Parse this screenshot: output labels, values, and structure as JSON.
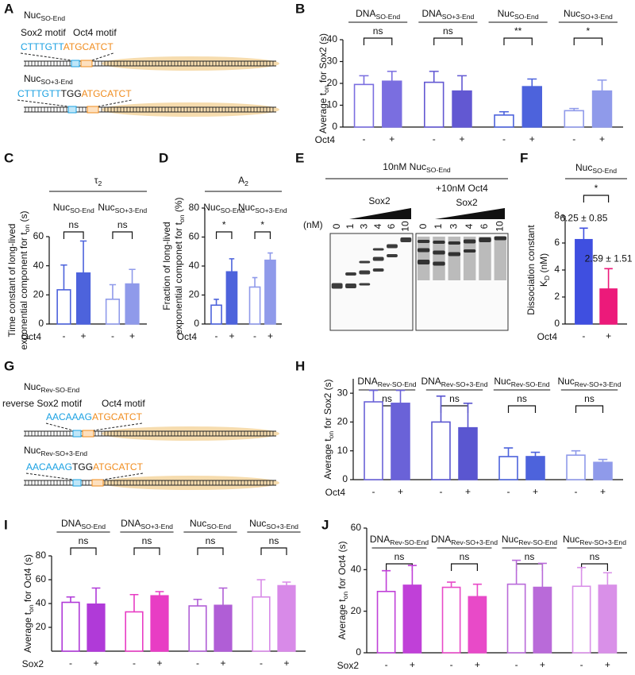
{
  "panel_A": {
    "panel": "A",
    "constructs": [
      {
        "name": {
          "text": "Nuc",
          "sub": "SO-End"
        },
        "motifs": [
          "Sox2 motif",
          "Oct4 motif"
        ],
        "sequence": [
          "CTTTGTT",
          "ATGCATCT"
        ]
      },
      {
        "name": {
          "text": "Nuc",
          "sub": "SO+3-End"
        },
        "sequence": [
          "CTTTGTT",
          "TGG",
          "ATGCATCT"
        ]
      }
    ]
  },
  "panel_G": {
    "panel": "G",
    "constructs": [
      {
        "name": {
          "text": "Nuc",
          "sub": "Rev-SO-End"
        },
        "motifs": [
          "reverse Sox2 motif",
          "Oct4 motif"
        ],
        "sequence": [
          "AACAAAG",
          "ATGCATCT"
        ]
      },
      {
        "name": {
          "text": "Nuc",
          "sub": "Rev-SO+3-End"
        },
        "sequence": [
          "AACAAAG",
          "TGG",
          "ATGCATCT"
        ]
      }
    ]
  },
  "panel_E": {
    "panel": "E",
    "title": {
      "text": "10nM  Nuc",
      "sub": "SO-End"
    },
    "left_label": "Sox2",
    "right_labels": [
      "+10nM Oct4",
      "Sox2"
    ],
    "unit": "(nM)",
    "lanes": [
      "0",
      "1",
      "3",
      "4",
      "6",
      "10",
      "0",
      "1",
      "3",
      "4",
      "6",
      "10"
    ]
  },
  "chart_data": [
    {
      "type": "bar",
      "panel": "B",
      "ylabel": [
        {
          "text": "Average t",
          "sub": "on",
          "after": " for Sox2 (s)"
        }
      ],
      "groups": [
        {
          "text": "DNA",
          "sub": "SO-End"
        },
        {
          "text": "DNA",
          "sub": "SO+3-End"
        },
        {
          "text": "Nuc",
          "sub": "SO-End"
        },
        {
          "text": "Nuc",
          "sub": "SO+3-End"
        }
      ],
      "sig": [
        "ns",
        "ns",
        "**",
        "*"
      ],
      "row_label": "Oct4",
      "categories": [
        "-",
        "+",
        "-",
        "+",
        "-",
        "+",
        "-",
        "+"
      ],
      "values": [
        19.5,
        21,
        20.5,
        16.5,
        5.5,
        18.5,
        7.5,
        16.5
      ],
      "errors": [
        4,
        4.5,
        5,
        7,
        1.5,
        3.5,
        1,
        5
      ],
      "colors": [
        "#7a6ee0",
        "#7a6ee0",
        "#6258d2",
        "#6258d2",
        "#4d63dc",
        "#4d63dc",
        "#8f9aea",
        "#8f9aea"
      ],
      "filled": [
        false,
        true,
        false,
        true,
        false,
        true,
        false,
        true
      ],
      "ylim": [
        0,
        40
      ],
      "yticks": [
        0,
        10,
        20,
        30,
        40
      ]
    },
    {
      "type": "bar",
      "panel": "C",
      "title": {
        "text": "τ",
        "sub": "2"
      },
      "ylabel": [
        {
          "text": "Time constant of long-lived"
        },
        {
          "text": "exponential component for t",
          "sub": "on",
          "after": " (s)"
        }
      ],
      "groups": [
        {
          "text": "Nuc",
          "sub": "SO-End"
        },
        {
          "text": "Nuc",
          "sub": "SO+3-End"
        }
      ],
      "sig": [
        "ns",
        "ns"
      ],
      "row_label": "Oct4",
      "categories": [
        "-",
        "+",
        "-",
        "+"
      ],
      "values": [
        23.5,
        35,
        17,
        27.5
      ],
      "errors": [
        17,
        22,
        10,
        10
      ],
      "colors": [
        "#4d63dc",
        "#4d63dc",
        "#8f9aea",
        "#8f9aea"
      ],
      "filled": [
        false,
        true,
        false,
        true
      ],
      "ylim": [
        0,
        60
      ],
      "yticks": [
        0,
        20,
        40,
        60
      ]
    },
    {
      "type": "bar",
      "panel": "D",
      "title": {
        "text": "A",
        "sub": "2"
      },
      "ylabel": [
        {
          "text": "Fraction of long-lived"
        },
        {
          "text": "exponential componet for t",
          "sub": "on",
          "after": " (%)"
        }
      ],
      "groups": [
        {
          "text": "Nuc",
          "sub": "SO-End"
        },
        {
          "text": "Nuc",
          "sub": "SO+3-End"
        }
      ],
      "sig": [
        "*",
        "*"
      ],
      "row_label": "Oct4",
      "categories": [
        "-",
        "+",
        "-",
        "+"
      ],
      "values": [
        13,
        36,
        25.5,
        44
      ],
      "errors": [
        4,
        9,
        6.5,
        5
      ],
      "colors": [
        "#4d63dc",
        "#4d63dc",
        "#8f9aea",
        "#8f9aea"
      ],
      "filled": [
        false,
        true,
        false,
        true
      ],
      "ylim": [
        0,
        80
      ],
      "yticks": [
        0,
        20,
        40,
        60,
        80
      ]
    },
    {
      "type": "bar",
      "panel": "F",
      "title": {
        "text": "Nuc",
        "sub": "SO-End"
      },
      "ylabel": [
        {
          "text": "Dissociation constant"
        },
        {
          "text": "K",
          "sub": "D",
          "after": " (nM)"
        }
      ],
      "sig": [
        "*"
      ],
      "row_label": "Oct4",
      "categories": [
        "-",
        "+"
      ],
      "values": [
        6.25,
        2.59
      ],
      "errors": [
        0.85,
        1.51
      ],
      "value_labels": [
        "6.25 ± 0.85",
        "2.59 ± 1.51"
      ],
      "colors": [
        "#3f4fe0",
        "#ec1a7a"
      ],
      "filled": [
        true,
        true
      ],
      "ylim": [
        0,
        8
      ],
      "yticks": [
        0,
        2,
        4,
        6,
        8
      ]
    },
    {
      "type": "bar",
      "panel": "H",
      "ylabel": [
        {
          "text": "Average t",
          "sub": "on",
          "after": " for Sox2 (s)"
        }
      ],
      "groups": [
        {
          "text": "DNA",
          "sub": "Rev-SO-End"
        },
        {
          "text": "DNA",
          "sub": "Rev-SO+3-End"
        },
        {
          "text": "Nuc",
          "sub": "Rev-SO-End"
        },
        {
          "text": "Nuc",
          "sub": "Rev-SO+3-End"
        }
      ],
      "sig": [
        "ns",
        "ns",
        "ns",
        "ns"
      ],
      "row_label": "Oct4",
      "categories": [
        "-",
        "+",
        "-",
        "+",
        "-",
        "+",
        "-",
        "+"
      ],
      "values": [
        27,
        26.5,
        20,
        18,
        8,
        8,
        8.5,
        6
      ],
      "errors": [
        4,
        4.5,
        9,
        8.5,
        3,
        1.5,
        1.5,
        1
      ],
      "colors": [
        "#6a62d8",
        "#6a62d8",
        "#5a56d0",
        "#5a56d0",
        "#4d63dc",
        "#4d63dc",
        "#8f9aea",
        "#8f9aea"
      ],
      "filled": [
        false,
        true,
        false,
        true,
        false,
        true,
        false,
        true
      ],
      "ylim": [
        0,
        35
      ],
      "yticks": [
        0,
        10,
        20,
        30
      ]
    },
    {
      "type": "bar",
      "panel": "I",
      "ylabel": [
        {
          "text": "Average t",
          "sub": "on",
          "after": " for Oct4 (s)"
        }
      ],
      "groups": [
        {
          "text": "DNA",
          "sub": "SO-End"
        },
        {
          "text": "DNA",
          "sub": "SO+3-End"
        },
        {
          "text": "Nuc",
          "sub": "SO-End"
        },
        {
          "text": "Nuc",
          "sub": "SO+3-End"
        }
      ],
      "sig": [
        "ns",
        "ns",
        "ns",
        "ns"
      ],
      "row_label": "Sox2",
      "categories": [
        "-",
        "+",
        "-",
        "+",
        "-",
        "+",
        "-",
        "+"
      ],
      "values": [
        41,
        39.5,
        33,
        46.5,
        38,
        38.5,
        45.5,
        55
      ],
      "errors": [
        4.5,
        13.5,
        14.5,
        3.5,
        5.5,
        14.5,
        14.5,
        3
      ],
      "colors": [
        "#b03ad8",
        "#b03ad8",
        "#e83dc4",
        "#e83dc4",
        "#b05ed6",
        "#b05ed6",
        "#d88ae8",
        "#d88ae8"
      ],
      "filled": [
        false,
        true,
        false,
        true,
        false,
        true,
        false,
        true
      ],
      "ylim": [
        0,
        80
      ],
      "yticks": [
        20,
        40,
        60,
        80
      ]
    },
    {
      "type": "bar",
      "panel": "J",
      "ylabel": [
        {
          "text": "Average t",
          "sub": "on",
          "after": " for Oct4 (s)"
        }
      ],
      "groups": [
        {
          "text": "DNA",
          "sub": "Rev-SO-End"
        },
        {
          "text": "DNA",
          "sub": "Rev-SO+3-End"
        },
        {
          "text": "Nuc",
          "sub": "Rev-SO-End"
        },
        {
          "text": "Nuc",
          "sub": "Rev-SO+3-End"
        }
      ],
      "sig": [
        "ns",
        "ns",
        "ns",
        "ns"
      ],
      "row_label": "Sox2",
      "categories": [
        "-",
        "+",
        "-",
        "+",
        "-",
        "+",
        "-",
        "+"
      ],
      "values": [
        29.5,
        32.5,
        31.5,
        27,
        33,
        31.5,
        32,
        32.5
      ],
      "errors": [
        10,
        9.5,
        2.5,
        6,
        11.5,
        11.5,
        9,
        6
      ],
      "colors": [
        "#c040d8",
        "#c040d8",
        "#e84ac8",
        "#e84ac8",
        "#b96ad9",
        "#b96ad9",
        "#d990e8",
        "#d990e8"
      ],
      "filled": [
        false,
        true,
        false,
        true,
        false,
        true,
        false,
        true
      ],
      "ylim": [
        0,
        60
      ],
      "yticks": [
        0,
        20,
        40,
        60
      ]
    }
  ]
}
